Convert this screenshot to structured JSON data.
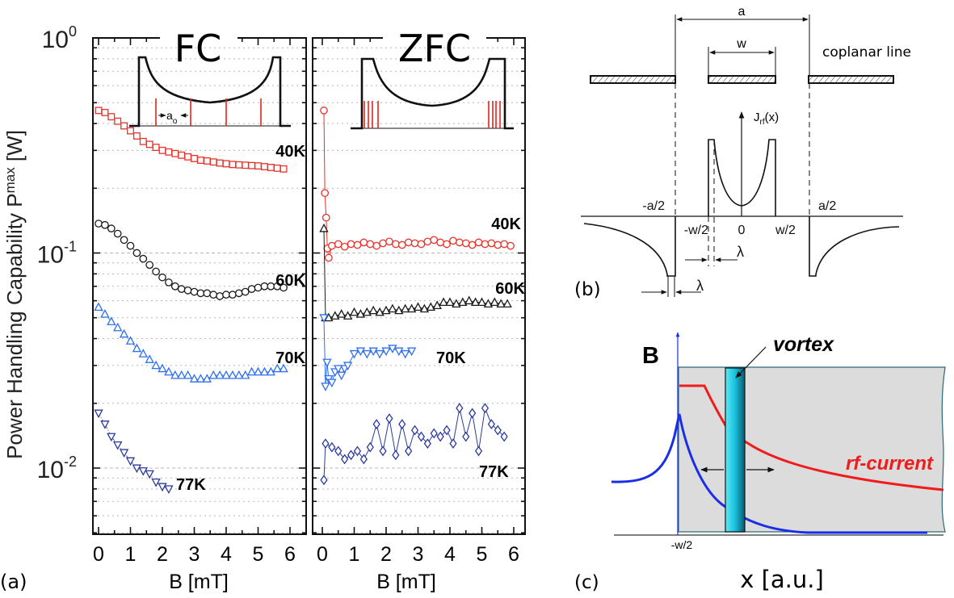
{
  "panel_a": {
    "label": "(a)",
    "ylabel": {
      "main": "Power Handling Capability P",
      "sub": "max",
      "unit": " [W]"
    },
    "yticks": [
      {
        "base": "10",
        "exp": "0",
        "value": 1
      },
      {
        "base": "10",
        "exp": "-1",
        "value": 0.1
      },
      {
        "base": "10",
        "exp": "-2",
        "value": 0.01
      }
    ],
    "xticks": [
      "0",
      "1",
      "2",
      "3",
      "4",
      "5",
      "6"
    ],
    "xlabel": "B [mT]",
    "fc_inset_spacing_label": {
      "main": "a",
      "sub": "o"
    }
  },
  "chart_data": [
    {
      "type": "scatter",
      "title": "FC",
      "xlabel": "B [mT]",
      "ylabel": "Power Handling Capability Pmax [W]",
      "xlim": [
        0,
        6
      ],
      "ylim": [
        0.005,
        1
      ],
      "yscale": "log",
      "grid": "dotted horizontal",
      "series": [
        {
          "name": "40K",
          "marker": "square",
          "color": "#e8322a",
          "x": [
            0,
            0.2,
            0.4,
            0.6,
            0.8,
            1,
            1.2,
            1.4,
            1.6,
            1.8,
            2,
            2.2,
            2.4,
            2.6,
            2.8,
            3,
            3.2,
            3.4,
            3.6,
            3.8,
            4,
            4.2,
            4.4,
            4.6,
            4.8,
            5,
            5.2,
            5.4,
            5.6,
            5.8
          ],
          "y": [
            0.46,
            0.45,
            0.43,
            0.41,
            0.39,
            0.37,
            0.35,
            0.33,
            0.32,
            0.31,
            0.3,
            0.295,
            0.29,
            0.285,
            0.28,
            0.275,
            0.27,
            0.268,
            0.265,
            0.262,
            0.26,
            0.258,
            0.257,
            0.256,
            0.255,
            0.254,
            0.252,
            0.25,
            0.248,
            0.246
          ]
        },
        {
          "name": "60K",
          "marker": "circle",
          "color": "#1a1a1a",
          "x": [
            0,
            0.2,
            0.4,
            0.6,
            0.8,
            1,
            1.2,
            1.4,
            1.6,
            1.8,
            2,
            2.2,
            2.4,
            2.6,
            2.8,
            3,
            3.2,
            3.4,
            3.6,
            3.8,
            4,
            4.2,
            4.4,
            4.6,
            4.8,
            5,
            5.2,
            5.4,
            5.6,
            5.8
          ],
          "y": [
            0.137,
            0.135,
            0.13,
            0.123,
            0.115,
            0.108,
            0.1,
            0.094,
            0.088,
            0.082,
            0.077,
            0.073,
            0.07,
            0.068,
            0.067,
            0.066,
            0.065,
            0.065,
            0.064,
            0.063,
            0.064,
            0.064,
            0.065,
            0.066,
            0.068,
            0.069,
            0.07,
            0.07,
            0.07,
            0.069
          ]
        },
        {
          "name": "70K",
          "marker": "triangle-up",
          "color": "#2f6ff0",
          "x": [
            0,
            0.2,
            0.4,
            0.6,
            0.8,
            1,
            1.2,
            1.4,
            1.6,
            1.8,
            2,
            2.2,
            2.4,
            2.6,
            2.8,
            3,
            3.2,
            3.4,
            3.6,
            3.8,
            4,
            4.2,
            4.4,
            4.6,
            4.8,
            5,
            5.2,
            5.4,
            5.6,
            5.8
          ],
          "y": [
            0.056,
            0.052,
            0.048,
            0.045,
            0.042,
            0.039,
            0.036,
            0.034,
            0.032,
            0.03,
            0.029,
            0.028,
            0.027,
            0.027,
            0.027,
            0.026,
            0.026,
            0.026,
            0.027,
            0.027,
            0.027,
            0.027,
            0.027,
            0.027,
            0.028,
            0.028,
            0.028,
            0.028,
            0.029,
            0.029
          ]
        },
        {
          "name": "77K",
          "marker": "triangle-down",
          "color": "#2a3a9c",
          "x": [
            0,
            0.2,
            0.4,
            0.6,
            0.8,
            1,
            1.2,
            1.4,
            1.6,
            1.8,
            2,
            2.2
          ],
          "y": [
            0.018,
            0.016,
            0.014,
            0.0128,
            0.0118,
            0.0108,
            0.01,
            0.0097,
            0.0094,
            0.0086,
            0.0082,
            0.008
          ]
        }
      ]
    },
    {
      "type": "scatter",
      "title": "ZFC",
      "xlabel": "B [mT]",
      "xlim": [
        0,
        6
      ],
      "ylim": [
        0.005,
        1
      ],
      "yscale": "log",
      "grid": "dotted horizontal",
      "series": [
        {
          "name": "40K",
          "marker": "circle",
          "color": "#e8322a",
          "x": [
            0.05,
            0.08,
            0.12,
            0.16,
            0.2,
            0.3,
            0.5,
            0.7,
            0.9,
            1.1,
            1.3,
            1.5,
            1.7,
            1.9,
            2.1,
            2.3,
            2.5,
            2.7,
            2.9,
            3.1,
            3.3,
            3.5,
            3.7,
            3.9,
            4.1,
            4.3,
            4.5,
            4.7,
            4.9,
            5.1,
            5.3,
            5.5,
            5.7,
            5.9
          ],
          "y": [
            0.46,
            0.19,
            0.146,
            0.105,
            0.095,
            0.108,
            0.11,
            0.107,
            0.11,
            0.109,
            0.112,
            0.11,
            0.108,
            0.111,
            0.113,
            0.11,
            0.109,
            0.112,
            0.111,
            0.11,
            0.113,
            0.115,
            0.112,
            0.11,
            0.114,
            0.112,
            0.111,
            0.109,
            0.112,
            0.11,
            0.111,
            0.109,
            0.11,
            0.108
          ]
        },
        {
          "name": "60K",
          "marker": "triangle-up",
          "color": "#1a1a1a",
          "x": [
            0.05,
            0.1,
            0.2,
            0.4,
            0.6,
            0.8,
            1,
            1.2,
            1.4,
            1.6,
            1.8,
            2,
            2.2,
            2.4,
            2.6,
            2.8,
            3,
            3.2,
            3.4,
            3.6,
            3.8,
            4,
            4.2,
            4.4,
            4.6,
            4.8,
            5,
            5.2,
            5.4,
            5.6,
            5.8
          ],
          "y": [
            0.13,
            0.05,
            0.05,
            0.051,
            0.052,
            0.051,
            0.053,
            0.052,
            0.053,
            0.054,
            0.053,
            0.054,
            0.055,
            0.054,
            0.055,
            0.055,
            0.056,
            0.055,
            0.056,
            0.057,
            0.059,
            0.059,
            0.058,
            0.059,
            0.06,
            0.059,
            0.059,
            0.058,
            0.059,
            0.058,
            0.058
          ]
        },
        {
          "name": "70K",
          "marker": "triangle-down",
          "color": "#2f6ff0",
          "x": [
            0.05,
            0.1,
            0.15,
            0.2,
            0.3,
            0.4,
            0.5,
            0.6,
            0.7,
            0.8,
            1,
            1.2,
            1.4,
            1.6,
            1.8,
            2,
            2.2,
            2.4,
            2.6,
            2.8
          ],
          "y": [
            0.05,
            0.024,
            0.031,
            0.026,
            0.025,
            0.028,
            0.029,
            0.027,
            0.029,
            0.03,
            0.034,
            0.035,
            0.034,
            0.035,
            0.034,
            0.035,
            0.036,
            0.035,
            0.034,
            0.035
          ]
        },
        {
          "name": "77K",
          "marker": "diamond",
          "color": "#2a3a9c",
          "x": [
            0.05,
            0.1,
            0.3,
            0.5,
            0.7,
            0.9,
            1.1,
            1.3,
            1.5,
            1.7,
            1.9,
            2.1,
            2.3,
            2.5,
            2.7,
            2.9,
            3.1,
            3.3,
            3.5,
            3.7,
            3.9,
            4.1,
            4.3,
            4.5,
            4.7,
            4.9,
            5.1,
            5.3,
            5.5,
            5.7
          ],
          "y": [
            0.0088,
            0.013,
            0.0125,
            0.012,
            0.011,
            0.0115,
            0.012,
            0.011,
            0.0125,
            0.016,
            0.012,
            0.017,
            0.0115,
            0.016,
            0.012,
            0.015,
            0.014,
            0.013,
            0.0145,
            0.014,
            0.015,
            0.013,
            0.019,
            0.014,
            0.018,
            0.012,
            0.019,
            0.016,
            0.015,
            0.014
          ]
        }
      ]
    }
  ],
  "panel_b": {
    "label": "(b)",
    "dim_a": "a",
    "dim_w": "w",
    "title": "coplanar line",
    "current_axis": {
      "main": "J",
      "sub": "rf",
      "rest": "(x)"
    },
    "ticks": {
      "neg_a_half": "-a/2",
      "pos_a_half": "a/2",
      "neg_w_half": "-w/2",
      "zero": "0",
      "pos_w_half": "w/2"
    },
    "lambda": "λ"
  },
  "panel_c": {
    "label": "(c)",
    "y_axis": "B",
    "vortex": "vortex",
    "rf_current": "rf-current",
    "tick": "-w/2",
    "xlabel": "x  [a.u.]",
    "colors": {
      "field": "#1a2ee8",
      "current": "#f01c1c",
      "vortex": "#1ec8e0",
      "film": "#dcdcdc"
    }
  }
}
